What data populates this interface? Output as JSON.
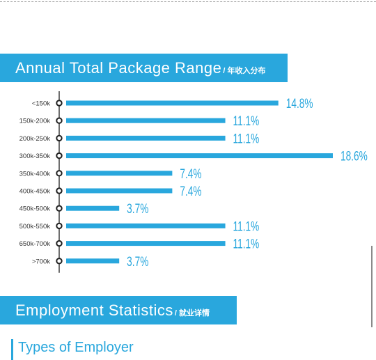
{
  "sections": {
    "package": {
      "title": "Annual Total Package Range",
      "subtitle": "/ 年收入分布"
    },
    "employment": {
      "title": "Employment Statistics",
      "subtitle": "/ 就业详情"
    },
    "employer": {
      "title": "Types of Employer"
    }
  },
  "colors": {
    "accent": "#29a7dd",
    "axis": "#1f1f1f",
    "label": "#333333"
  },
  "chart_data": {
    "type": "bar",
    "orientation": "horizontal",
    "title": "Annual Total Package Range / 年收入分布",
    "categories": [
      "<150k",
      "150k-200k",
      "200k-250k",
      "300k-350k",
      "350k-400k",
      "400k-450k",
      "450k-500k",
      "500k-550k",
      "650k-700k",
      ">700k"
    ],
    "values": [
      14.8,
      11.1,
      11.1,
      18.6,
      7.4,
      7.4,
      3.7,
      11.1,
      11.1,
      3.7
    ],
    "value_labels": [
      "14.8%",
      "11.1%",
      "11.1%",
      "18.6%",
      "7.4%",
      "7.4%",
      "3.7%",
      "11.1%",
      "11.1%",
      "3.7%"
    ],
    "unit": "%",
    "xlim": [
      0,
      18.6
    ],
    "grid": false,
    "legend": "none"
  }
}
